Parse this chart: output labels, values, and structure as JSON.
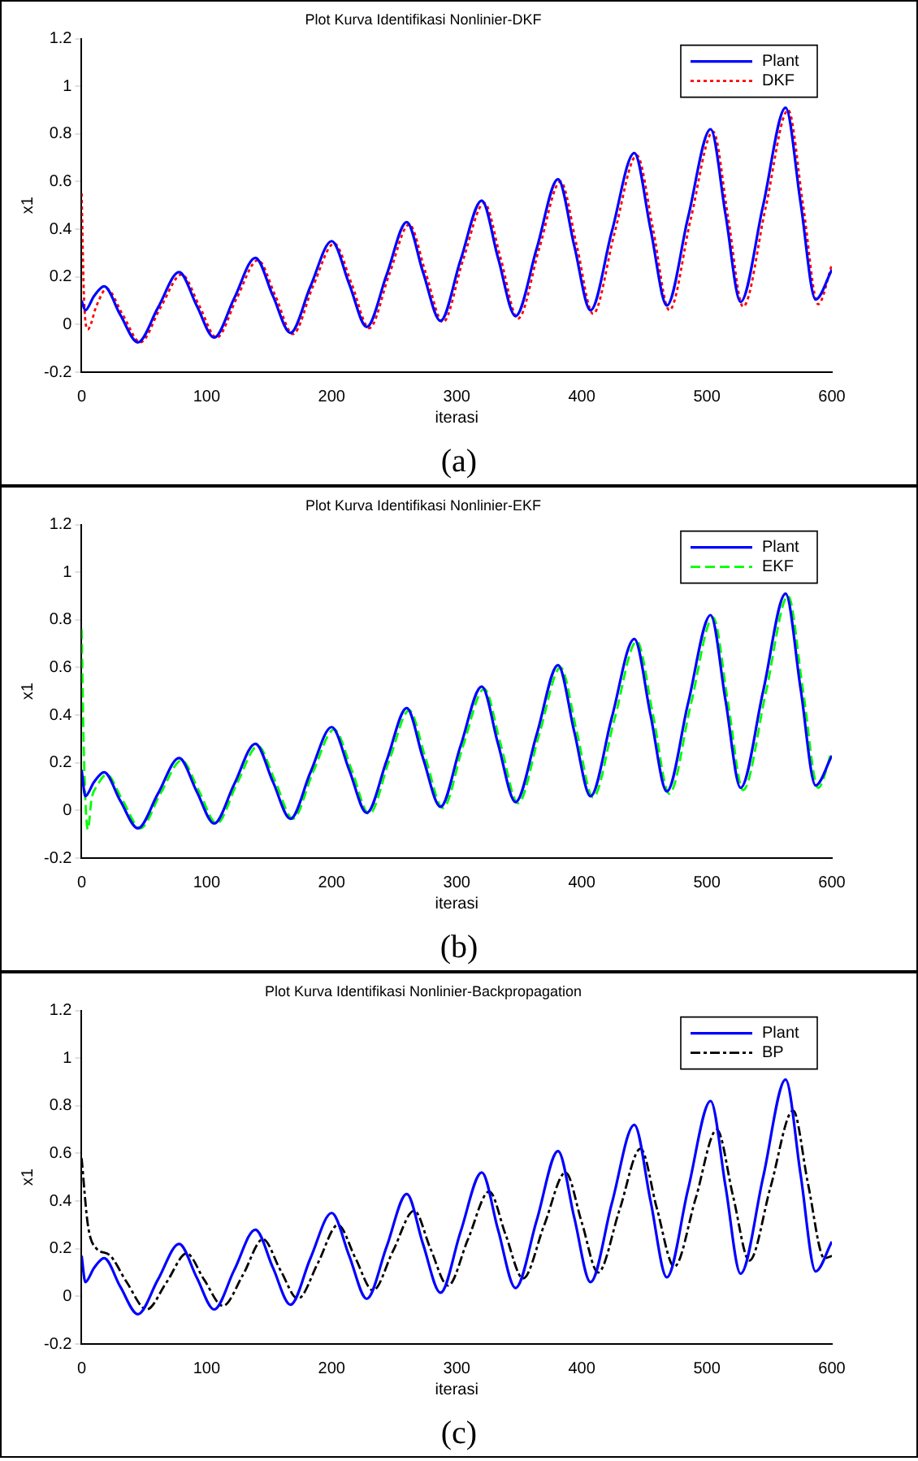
{
  "chart_data": [
    {
      "type": "line",
      "title": "Plot Kurva Identifikasi Nonlinier-DKF",
      "xlabel": "iterasi",
      "ylabel": "x1",
      "annotations": [
        "(a)"
      ],
      "xlim": [
        0,
        600
      ],
      "xticks": [
        0,
        100,
        200,
        300,
        400,
        500,
        600
      ],
      "ylim": [
        -0.2,
        1.2
      ],
      "yticks": [
        -0.2,
        0,
        0.2,
        0.4,
        0.6,
        0.8,
        1,
        1.2
      ],
      "grid": false,
      "legend": "top right",
      "marker": "none",
      "series": [
        {
          "name": "Plant",
          "color": "#0000ff",
          "line_style": "solid",
          "x": [
            0,
            3,
            10,
            18,
            31,
            45,
            61,
            78,
            92,
            106,
            122,
            139,
            153,
            167,
            183,
            200,
            214,
            228,
            244,
            260,
            273,
            287,
            303,
            320,
            333,
            347,
            364,
            381,
            394,
            407,
            424,
            442,
            455,
            468,
            485,
            503,
            515,
            527,
            545,
            563,
            575,
            587,
            600
          ],
          "values": [
            0.1,
            0.06,
            0.12,
            0.16,
            0.04,
            -0.075,
            0.07,
            0.22,
            0.08,
            -0.055,
            0.11,
            0.28,
            0.12,
            -0.035,
            0.16,
            0.35,
            0.17,
            -0.01,
            0.21,
            0.43,
            0.22,
            0.015,
            0.27,
            0.52,
            0.28,
            0.035,
            0.32,
            0.61,
            0.33,
            0.06,
            0.39,
            0.72,
            0.4,
            0.08,
            0.45,
            0.82,
            0.46,
            0.095,
            0.5,
            0.91,
            0.51,
            0.105,
            0.23
          ]
        },
        {
          "name": "DKF",
          "color": "#ff0000",
          "line_style": "dotted",
          "x": [
            0,
            2,
            5,
            12,
            20,
            33,
            47,
            63,
            80,
            94,
            108,
            124,
            141,
            155,
            169,
            185,
            202,
            216,
            230,
            246,
            262,
            275,
            289,
            305,
            322,
            335,
            349,
            366,
            383,
            396,
            409,
            426,
            444,
            457,
            470,
            487,
            505,
            517,
            529,
            547,
            565,
            577,
            589,
            600
          ],
          "values": [
            0.55,
            0.1,
            -0.02,
            0.08,
            0.15,
            0.04,
            -0.075,
            0.07,
            0.21,
            0.08,
            -0.055,
            0.11,
            0.27,
            0.12,
            -0.04,
            0.16,
            0.34,
            0.17,
            -0.015,
            0.21,
            0.42,
            0.22,
            0.01,
            0.27,
            0.51,
            0.28,
            0.025,
            0.32,
            0.6,
            0.33,
            0.045,
            0.38,
            0.71,
            0.4,
            0.06,
            0.44,
            0.81,
            0.45,
            0.075,
            0.49,
            0.9,
            0.5,
            0.085,
            0.25
          ]
        }
      ]
    },
    {
      "type": "line",
      "title": "Plot Kurva Identifikasi Nonlinier-EKF",
      "xlabel": "iterasi",
      "ylabel": "x1",
      "annotations": [
        "(b)"
      ],
      "xlim": [
        0,
        600
      ],
      "xticks": [
        0,
        100,
        200,
        300,
        400,
        500,
        600
      ],
      "ylim": [
        -0.2,
        1.2
      ],
      "yticks": [
        -0.2,
        0,
        0.2,
        0.4,
        0.6,
        0.8,
        1,
        1.2
      ],
      "grid": false,
      "legend": "top right",
      "marker": "none",
      "series": [
        {
          "name": "Plant",
          "color": "#0000ff",
          "line_style": "solid",
          "x": [
            0,
            3,
            10,
            18,
            31,
            45,
            61,
            78,
            92,
            106,
            122,
            139,
            153,
            167,
            183,
            200,
            214,
            228,
            244,
            260,
            273,
            287,
            303,
            320,
            333,
            347,
            364,
            381,
            394,
            407,
            424,
            442,
            455,
            468,
            485,
            503,
            515,
            527,
            545,
            563,
            575,
            587,
            600
          ],
          "values": [
            0.17,
            0.06,
            0.12,
            0.16,
            0.04,
            -0.075,
            0.07,
            0.22,
            0.08,
            -0.055,
            0.11,
            0.28,
            0.12,
            -0.035,
            0.16,
            0.35,
            0.17,
            -0.01,
            0.21,
            0.43,
            0.22,
            0.015,
            0.27,
            0.52,
            0.28,
            0.035,
            0.32,
            0.61,
            0.33,
            0.06,
            0.39,
            0.72,
            0.4,
            0.08,
            0.45,
            0.82,
            0.46,
            0.095,
            0.5,
            0.91,
            0.51,
            0.105,
            0.23
          ]
        },
        {
          "name": "EKF",
          "color": "#00ff00",
          "line_style": "dashed",
          "x": [
            0,
            2,
            5,
            8,
            12,
            20,
            33,
            47,
            63,
            80,
            94,
            108,
            124,
            141,
            155,
            169,
            185,
            202,
            216,
            230,
            246,
            262,
            275,
            289,
            305,
            322,
            335,
            349,
            366,
            383,
            396,
            409,
            426,
            444,
            457,
            470,
            487,
            505,
            517,
            529,
            547,
            565,
            577,
            589,
            600
          ],
          "values": [
            0.76,
            0.2,
            -0.08,
            0.05,
            0.1,
            0.15,
            0.04,
            -0.075,
            0.07,
            0.21,
            0.08,
            -0.055,
            0.11,
            0.27,
            0.12,
            -0.035,
            0.16,
            0.34,
            0.17,
            -0.015,
            0.21,
            0.42,
            0.22,
            0.01,
            0.27,
            0.51,
            0.28,
            0.03,
            0.32,
            0.6,
            0.33,
            0.055,
            0.38,
            0.71,
            0.4,
            0.07,
            0.44,
            0.81,
            0.45,
            0.085,
            0.49,
            0.9,
            0.5,
            0.095,
            0.25
          ]
        }
      ]
    },
    {
      "type": "line",
      "title": "Plot Kurva Identifikasi Nonlinier-Backpropagation",
      "xlabel": "iterasi",
      "ylabel": "x1",
      "annotations": [
        "(c)"
      ],
      "xlim": [
        0,
        600
      ],
      "xticks": [
        0,
        100,
        200,
        300,
        400,
        500,
        600
      ],
      "ylim": [
        -0.2,
        1.2
      ],
      "yticks": [
        -0.2,
        0,
        0.2,
        0.4,
        0.6,
        0.8,
        1,
        1.2
      ],
      "grid": false,
      "legend": "top right",
      "marker": "none",
      "series": [
        {
          "name": "Plant",
          "color": "#0000ff",
          "line_style": "solid",
          "x": [
            0,
            3,
            10,
            18,
            31,
            45,
            61,
            78,
            92,
            106,
            122,
            139,
            153,
            167,
            183,
            200,
            214,
            228,
            244,
            260,
            273,
            287,
            303,
            320,
            333,
            347,
            364,
            381,
            394,
            407,
            424,
            442,
            455,
            468,
            485,
            503,
            515,
            527,
            545,
            563,
            575,
            587,
            600
          ],
          "values": [
            0.17,
            0.06,
            0.12,
            0.16,
            0.04,
            -0.075,
            0.07,
            0.22,
            0.08,
            -0.055,
            0.11,
            0.28,
            0.12,
            -0.035,
            0.16,
            0.35,
            0.17,
            -0.01,
            0.21,
            0.43,
            0.22,
            0.015,
            0.27,
            0.52,
            0.28,
            0.035,
            0.32,
            0.61,
            0.33,
            0.06,
            0.39,
            0.72,
            0.4,
            0.08,
            0.45,
            0.82,
            0.46,
            0.095,
            0.5,
            0.91,
            0.51,
            0.105,
            0.23
          ]
        },
        {
          "name": "BP",
          "color": "#000000",
          "line_style": "dashed",
          "x": [
            0,
            5,
            12,
            22,
            36,
            52,
            68,
            84,
            98,
            113,
            129,
            145,
            159,
            173,
            189,
            205,
            219,
            233,
            249,
            266,
            279,
            293,
            309,
            326,
            339,
            353,
            370,
            387,
            400,
            413,
            430,
            447,
            460,
            474,
            491,
            508,
            521,
            534,
            551,
            569,
            581,
            594,
            600
          ],
          "values": [
            0.58,
            0.3,
            0.2,
            0.175,
            0.06,
            -0.055,
            0.06,
            0.18,
            0.07,
            -0.04,
            0.09,
            0.24,
            0.11,
            -0.01,
            0.14,
            0.3,
            0.16,
            0.025,
            0.19,
            0.36,
            0.2,
            0.045,
            0.24,
            0.44,
            0.26,
            0.075,
            0.3,
            0.52,
            0.31,
            0.1,
            0.36,
            0.62,
            0.37,
            0.125,
            0.41,
            0.7,
            0.42,
            0.15,
            0.46,
            0.78,
            0.47,
            0.16,
            0.17
          ]
        }
      ]
    }
  ]
}
